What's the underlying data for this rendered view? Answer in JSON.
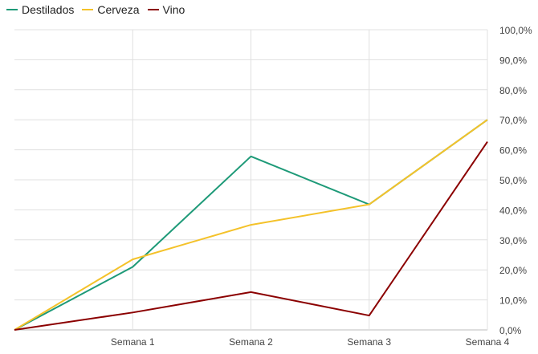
{
  "chart_data": {
    "type": "line",
    "categories": [
      "",
      "Semana 1",
      "Semana 2",
      "Semana 3",
      "Semana 4"
    ],
    "series": [
      {
        "name": "Destilados",
        "color": "#1e9a78",
        "values": [
          0.0,
          21.0,
          57.8,
          41.8,
          70.0
        ]
      },
      {
        "name": "Cerveza",
        "color": "#f4c22a",
        "values": [
          0.0,
          23.5,
          35.0,
          41.8,
          70.0
        ]
      },
      {
        "name": "Vino",
        "color": "#8b0000",
        "values": [
          0.0,
          5.8,
          12.6,
          4.8,
          62.7
        ]
      }
    ],
    "y_ticks": [
      "0,0%",
      "10,0%",
      "20,0%",
      "30,0%",
      "40,0%",
      "50,0%",
      "60,0%",
      "70,0%",
      "80,0%",
      "90,0%",
      "100,0%"
    ],
    "ylim": [
      0,
      100
    ],
    "y_axis_side": "right",
    "grid": true,
    "legend": "top-left",
    "title": "",
    "xlabel": "",
    "ylabel": ""
  }
}
